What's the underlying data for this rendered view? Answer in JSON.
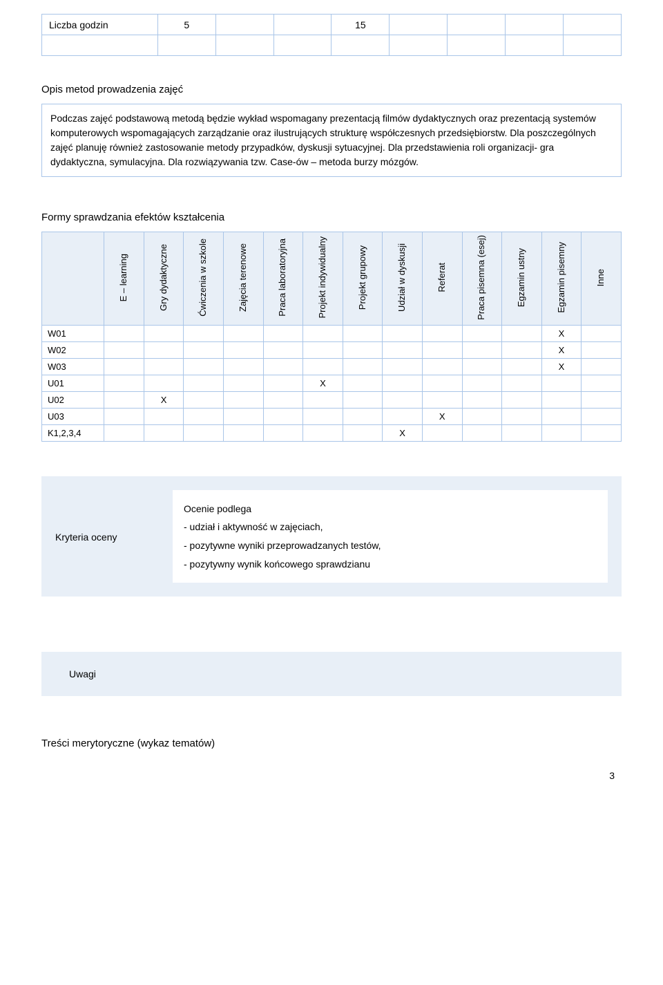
{
  "hours_table": {
    "label": "Liczba godzin",
    "values": [
      "5",
      "",
      "",
      "15",
      "",
      "",
      "",
      ""
    ]
  },
  "methods": {
    "title": "Opis metod prowadzenia zajęć",
    "body": "Podczas zajęć podstawową metodą będzie wykład wspomagany prezentacją filmów dydaktycznych oraz prezentacją systemów komputerowych wspomagających zarządzanie oraz ilustrujących strukturę współczesnych przedsiębiorstw. Dla poszczególnych zajęć planuję również zastosowanie metody przypadków, dyskusji sytuacyjnej. Dla przedstawienia roli organizacji- gra dydaktyczna, symulacyjna. Dla rozwiązywania tzw. Case-ów – metoda burzy mózgów."
  },
  "matrix": {
    "title": "Formy sprawdzania efektów kształcenia",
    "columns": [
      "E – learning",
      "Gry\ndydaktyczne",
      "Ćwiczenia w\nszkole",
      "Zajęcia\nterenowe",
      "Praca\nlaboratoryjna",
      "Projekt\nindywidualny",
      "Projekt\ngrupowy",
      "Udział w\ndyskusji",
      "Referat",
      "Praca pisemna\n(esej)",
      "Egzamin ustny",
      "Egzamin\npisemny",
      "Inne"
    ],
    "rows": [
      {
        "label": "W01",
        "cells": [
          "",
          "",
          "",
          "",
          "",
          "",
          "",
          "",
          "",
          "",
          "",
          "X",
          ""
        ]
      },
      {
        "label": "W02",
        "cells": [
          "",
          "",
          "",
          "",
          "",
          "",
          "",
          "",
          "",
          "",
          "",
          "X",
          ""
        ]
      },
      {
        "label": "W03",
        "cells": [
          "",
          "",
          "",
          "",
          "",
          "",
          "",
          "",
          "",
          "",
          "",
          "X",
          ""
        ]
      },
      {
        "label": "U01",
        "cells": [
          "",
          "",
          "",
          "",
          "",
          "X",
          "",
          "",
          "",
          "",
          "",
          "",
          ""
        ]
      },
      {
        "label": "U02",
        "cells": [
          "",
          "X",
          "",
          "",
          "",
          "",
          "",
          "",
          "",
          "",
          "",
          "",
          ""
        ]
      },
      {
        "label": "U03",
        "cells": [
          "",
          "",
          "",
          "",
          "",
          "",
          "",
          "",
          "X",
          "",
          "",
          "",
          ""
        ]
      },
      {
        "label": "K1,2,3,4",
        "cells": [
          "",
          "",
          "",
          "",
          "",
          "",
          "",
          "X",
          "",
          "",
          "",
          "",
          ""
        ]
      }
    ]
  },
  "criteria": {
    "label": "Kryteria oceny",
    "heading": "Ocenie podlega",
    "items": [
      "- udział i aktywność w zajęciach,",
      "- pozytywne wyniki przeprowadzanych testów,",
      "- pozytywny wynik końcowego sprawdzianu"
    ]
  },
  "uwagi": {
    "label": "Uwagi"
  },
  "footer": {
    "title": "Treści merytoryczne (wykaz tematów)"
  },
  "page_number": "3",
  "colors": {
    "border": "#a9c5e8",
    "header_bg": "#e8eff7"
  }
}
